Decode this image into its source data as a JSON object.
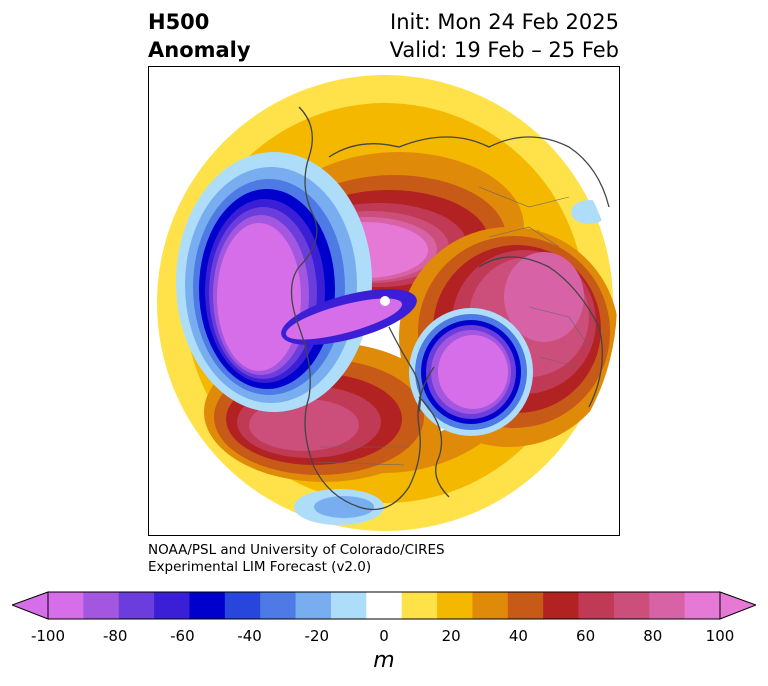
{
  "header": {
    "title_line1": "H500",
    "title_line2": "Anomaly",
    "init": "Init: Mon 24 Feb 2025",
    "valid": "Valid: 19 Feb – 25 Feb"
  },
  "credit": {
    "line1": "NOAA/PSL and University of Colorado/CIRES",
    "line2": "Experimental LIM Forecast (v2.0)"
  },
  "colorbar": {
    "unit": "m",
    "ticks": [
      "-100",
      "-80",
      "-60",
      "-40",
      "-20",
      "0",
      "20",
      "40",
      "60",
      "80",
      "100"
    ],
    "levels": [
      -100,
      -90,
      -80,
      -70,
      -60,
      -50,
      -40,
      -30,
      -20,
      -10,
      10,
      20,
      30,
      40,
      50,
      60,
      70,
      80,
      90,
      100
    ],
    "colors": [
      "#d56ee8",
      "#a357e0",
      "#6a3ddc",
      "#3a1fd6",
      "#0000cc",
      "#2846dc",
      "#4e7ae6",
      "#78aef0",
      "#aeddfa",
      "#ffffff",
      "#ffe24a",
      "#f4b800",
      "#e08a0a",
      "#c85a18",
      "#b22222",
      "#c03a55",
      "#cc4e7a",
      "#d762a6",
      "#e678d6"
    ],
    "low_color": "#d56ee8",
    "high_color": "#e678d6"
  },
  "map": {
    "projection": "north-polar-stereographic",
    "variable": "500 hPa geopotential height anomaly",
    "features": [
      "negative-anomaly-north-pacific",
      "negative-anomaly-north-atlantic",
      "positive-anomaly-north-america",
      "positive-anomaly-europe",
      "positive-anomaly-siberia"
    ]
  }
}
